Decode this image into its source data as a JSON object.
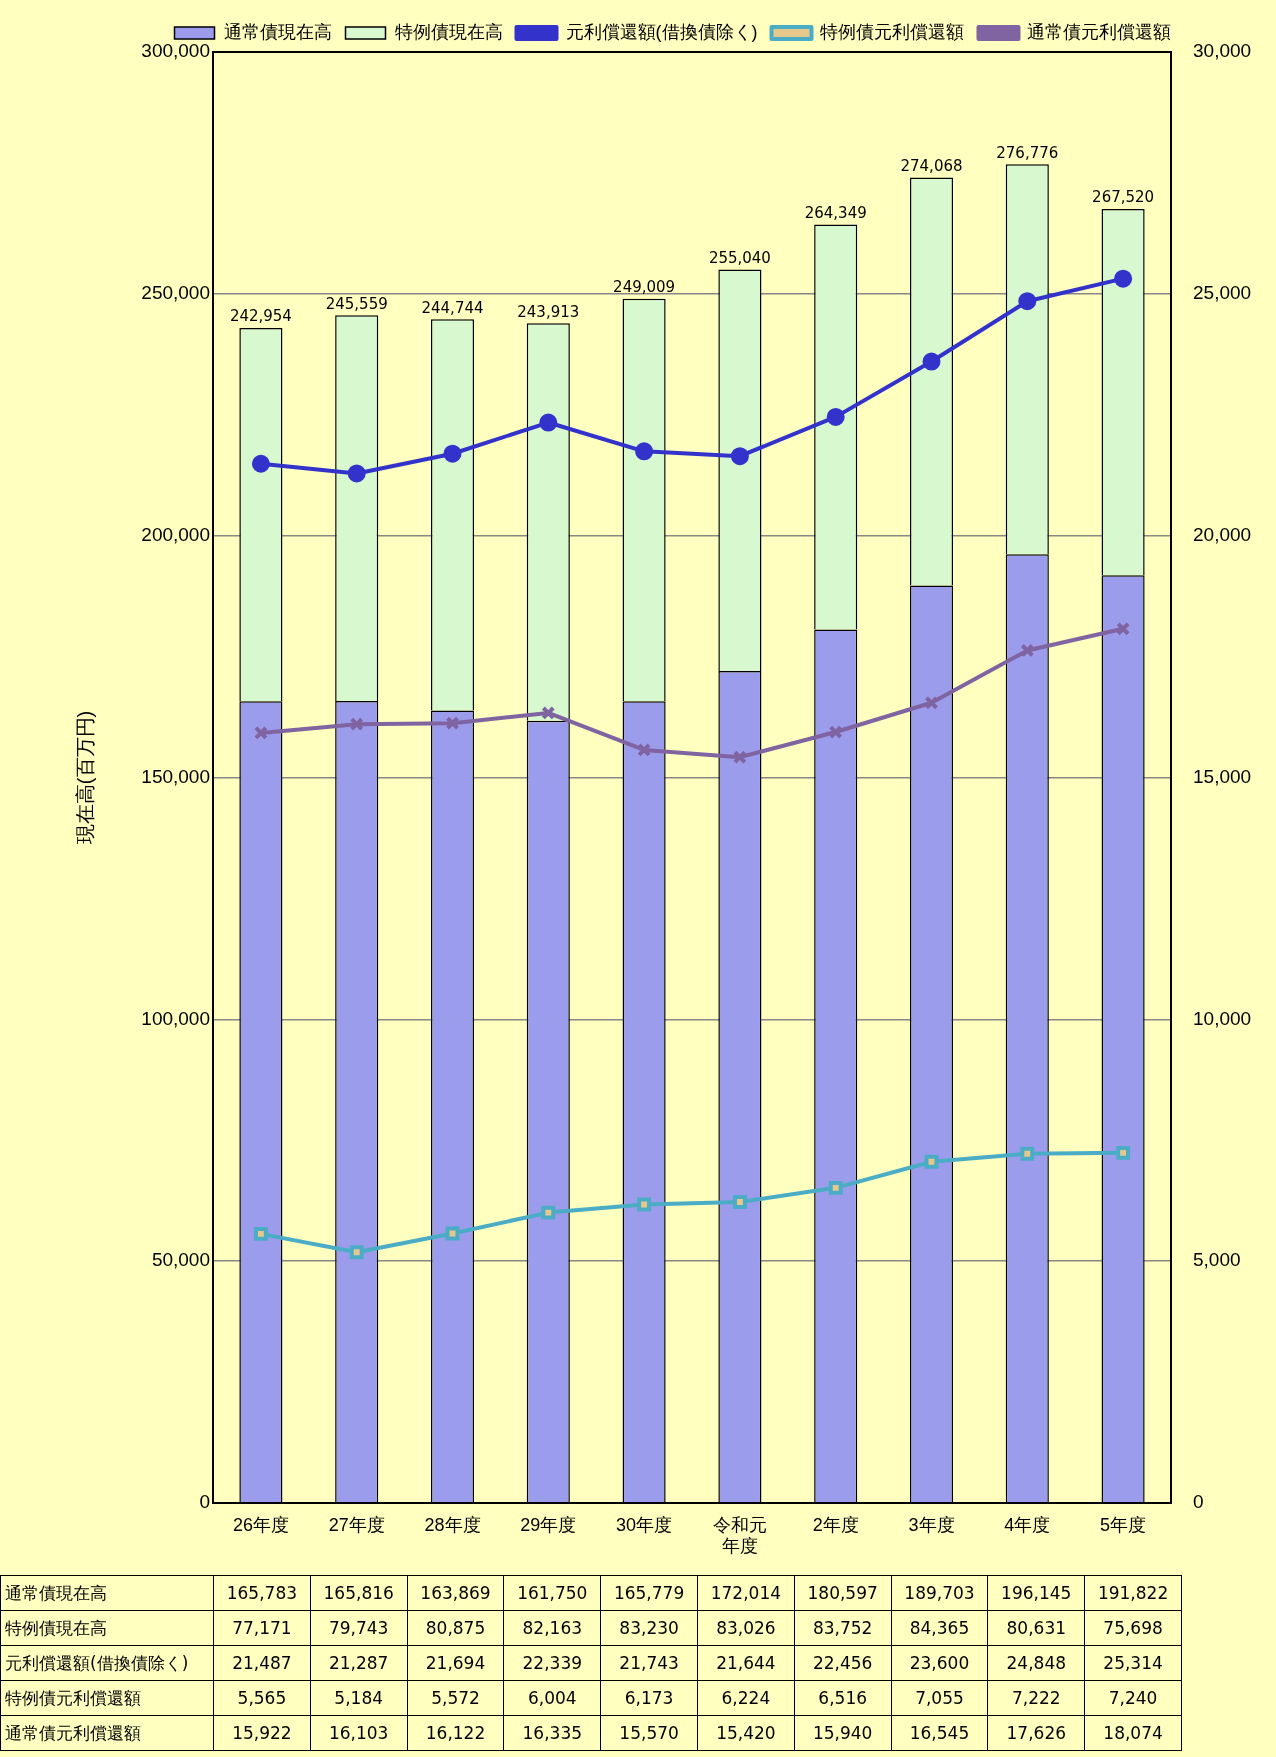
{
  "chart_data": {
    "type": "bar",
    "stacked": true,
    "ylabel": "現在高(百万円)",
    "categories": [
      "26年度",
      "27年度",
      "28年度",
      "29年度",
      "30年度",
      "令和元年度",
      "2年度",
      "3年度",
      "4年度",
      "5年度"
    ],
    "series": [
      {
        "name": "通常債現在高",
        "color": "#9c9cec",
        "values": [
          165783,
          165816,
          163869,
          161750,
          165779,
          172014,
          180597,
          189703,
          196145,
          191822
        ],
        "value_labels": [
          "165,783",
          "165,816",
          "163,869",
          "161,750",
          "165,779",
          "172,014",
          "180,597",
          "189,703",
          "196,145",
          "191,822"
        ]
      },
      {
        "name": "特例債現在高",
        "color": "#d8f8d0",
        "values": [
          77171,
          79743,
          80875,
          82163,
          83230,
          83026,
          83752,
          84365,
          80631,
          75698
        ],
        "value_labels": [
          "77,171",
          "79,743",
          "80,875",
          "82,163",
          "83,230",
          "83,026",
          "83,752",
          "84,365",
          "80,631",
          "75,698"
        ]
      },
      {
        "name": "元利償還額(借換債除く)",
        "type": "line",
        "axis": "y2",
        "marker": "circle",
        "color": "#3333cc",
        "values": [
          21487,
          21287,
          21694,
          22339,
          21743,
          21644,
          22456,
          23600,
          24848,
          25314
        ],
        "value_labels": [
          "21,487",
          "21,287",
          "21,694",
          "22,339",
          "21,743",
          "21,644",
          "22,456",
          "23,600",
          "24,848",
          "25,314"
        ]
      },
      {
        "name": "特例債元利償還額",
        "type": "line",
        "axis": "y2",
        "marker": "square",
        "color": "#4bacc6",
        "values": [
          5565,
          5184,
          5572,
          6004,
          6173,
          6224,
          6516,
          7055,
          7222,
          7240
        ],
        "value_labels": [
          "5,565",
          "5,184",
          "5,572",
          "6,004",
          "6,173",
          "6,224",
          "6,516",
          "7,055",
          "7,222",
          "7,240"
        ]
      },
      {
        "name": "通常債元利償還額",
        "type": "line",
        "axis": "y2",
        "marker": "cross",
        "color": "#8064a2",
        "values": [
          15922,
          16103,
          16122,
          16335,
          15570,
          15420,
          15940,
          16545,
          17626,
          18074
        ],
        "value_labels": [
          "15,922",
          "16,103",
          "16,122",
          "16,335",
          "15,570",
          "15,420",
          "15,940",
          "16,545",
          "17,626",
          "18,074"
        ]
      }
    ],
    "totals": [
      "242,954",
      "245,559",
      "244,744",
      "243,913",
      "249,009",
      "255,040",
      "264,349",
      "274,068",
      "276,776",
      "267,520"
    ],
    "ylim": [
      0,
      300000
    ],
    "yticks": [
      0,
      {
        "value": 50000,
        "label": "50,000"
      },
      {
        "value": 100000,
        "label": "100,000"
      },
      {
        "value": 150000,
        "label": "150,000"
      },
      {
        "value": 200000,
        "label": "200,000"
      },
      {
        "value": 250000,
        "label": "250,000"
      },
      {
        "value": 300000,
        "label": "300,000"
      }
    ],
    "y2lim": [
      0,
      30000
    ],
    "y2ticks": [
      0,
      {
        "value": 5000,
        "label": "5,000"
      },
      {
        "value": 10000,
        "label": "10,000"
      },
      {
        "value": 15000,
        "label": "15,000"
      },
      {
        "value": 20000,
        "label": "20,000"
      },
      {
        "value": 25000,
        "label": "25,000"
      },
      {
        "value": 30000,
        "label": "30,000"
      }
    ],
    "grid": "y",
    "legend": "top"
  }
}
